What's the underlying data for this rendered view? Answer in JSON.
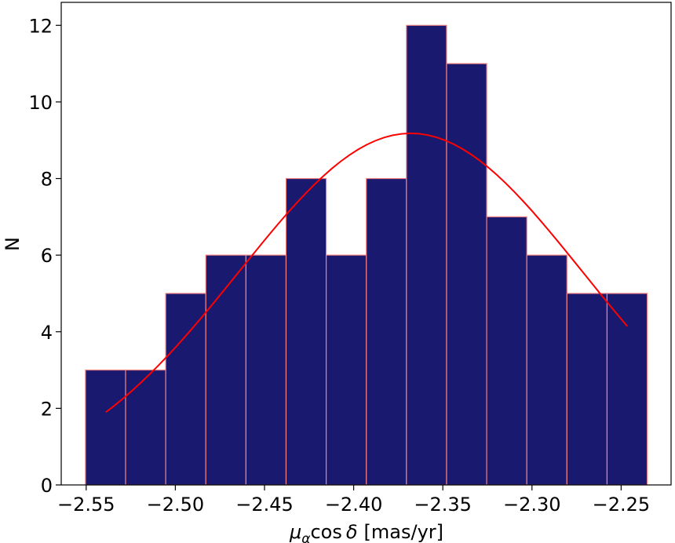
{
  "chart_data": {
    "type": "bar",
    "title": "",
    "xlabel": "μαcos δ [mas/yr]",
    "xlabel_parts": {
      "mu": "μ",
      "sub": "α",
      "cos": "cos",
      "delta": "δ",
      "unit": "[mas/yr]"
    },
    "ylabel": "N",
    "xlim": [
      -2.564,
      -2.222
    ],
    "ylim": [
      0,
      12.6
    ],
    "bins": [
      {
        "x0": -2.5504,
        "x1": -2.5279,
        "count": 3
      },
      {
        "x0": -2.5279,
        "x1": -2.5054,
        "count": 3
      },
      {
        "x0": -2.5054,
        "x1": -2.4829,
        "count": 5
      },
      {
        "x0": -2.4829,
        "x1": -2.4604,
        "count": 6
      },
      {
        "x0": -2.4604,
        "x1": -2.4379,
        "count": 6
      },
      {
        "x0": -2.4379,
        "x1": -2.4154,
        "count": 8
      },
      {
        "x0": -2.4154,
        "x1": -2.3929,
        "count": 6
      },
      {
        "x0": -2.3929,
        "x1": -2.3704,
        "count": 8
      },
      {
        "x0": -2.3704,
        "x1": -2.3479,
        "count": 12
      },
      {
        "x0": -2.3479,
        "x1": -2.3254,
        "count": 11
      },
      {
        "x0": -2.3254,
        "x1": -2.3029,
        "count": 7
      },
      {
        "x0": -2.3029,
        "x1": -2.2804,
        "count": 6
      },
      {
        "x0": -2.2804,
        "x1": -2.2579,
        "count": 5
      },
      {
        "x0": -2.2579,
        "x1": -2.2354,
        "count": 5
      }
    ],
    "fit_curve": {
      "type": "gaussian",
      "mean": -2.368,
      "sigma": 0.0963,
      "amplitude": 9.18,
      "x_range": [
        -2.539,
        -2.2465
      ]
    },
    "xticks": [
      {
        "value": -2.55,
        "label": "−2.55"
      },
      {
        "value": -2.5,
        "label": "−2.50"
      },
      {
        "value": -2.45,
        "label": "−2.45"
      },
      {
        "value": -2.4,
        "label": "−2.40"
      },
      {
        "value": -2.35,
        "label": "−2.35"
      },
      {
        "value": -2.3,
        "label": "−2.30"
      },
      {
        "value": -2.25,
        "label": "−2.25"
      }
    ],
    "yticks": [
      {
        "value": 0,
        "label": "0"
      },
      {
        "value": 2,
        "label": "2"
      },
      {
        "value": 4,
        "label": "4"
      },
      {
        "value": 6,
        "label": "6"
      },
      {
        "value": 8,
        "label": "8"
      },
      {
        "value": 10,
        "label": "10"
      },
      {
        "value": 12,
        "label": "12"
      }
    ],
    "colors": {
      "bar_fill": "#191970",
      "bar_edge": "#f08080",
      "curve": "#ff0000",
      "axes": "#000000"
    },
    "grid": false
  }
}
